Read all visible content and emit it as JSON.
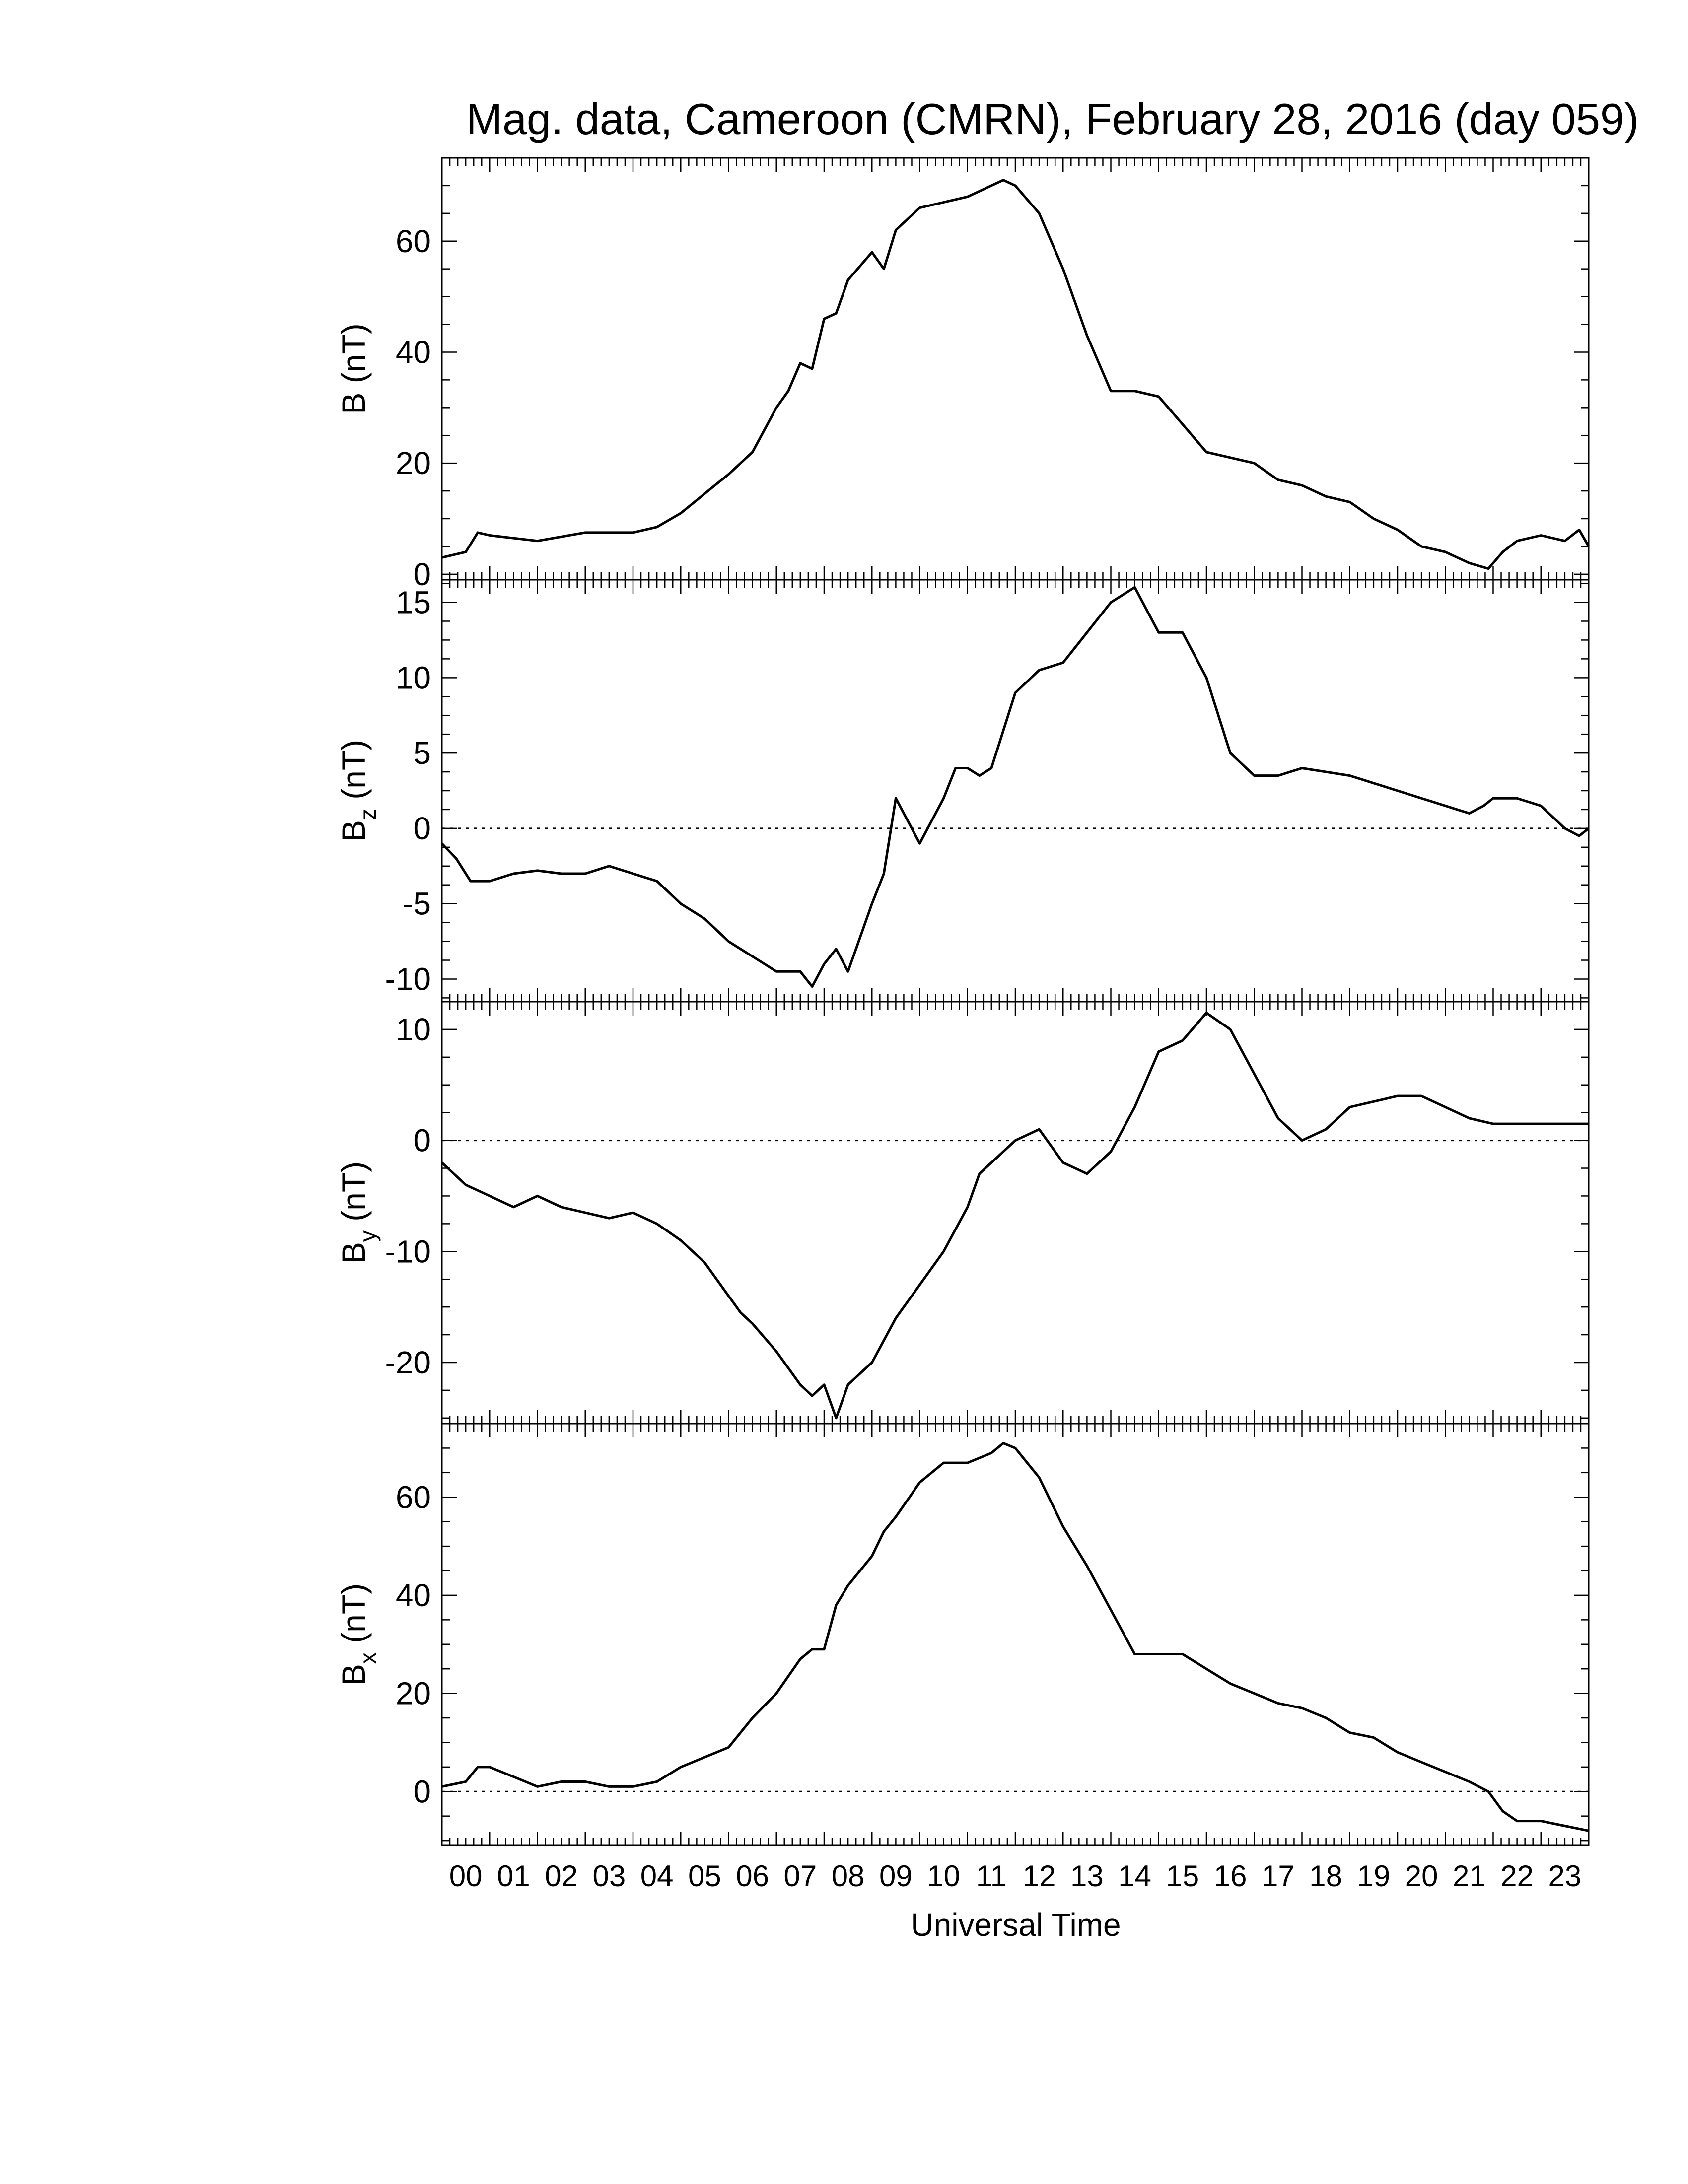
{
  "chart_data": {
    "type": "line",
    "title": "Mag. data, Cameroon (CMRN), February 28, 2016 (day 059)",
    "xlabel": "Universal Time",
    "xlim": [
      0,
      24
    ],
    "x_tick_labels": [
      "00",
      "01",
      "02",
      "03",
      "04",
      "05",
      "06",
      "07",
      "08",
      "09",
      "10",
      "11",
      "12",
      "13",
      "14",
      "15",
      "16",
      "17",
      "18",
      "19",
      "20",
      "21",
      "22",
      "23"
    ],
    "panels": [
      {
        "name": "B",
        "ylabel": "B (nT)",
        "ylabel_parts": {
          "base": "B",
          "sub": "",
          "unit": " (nT)"
        },
        "ylim": [
          -1,
          75
        ],
        "yticks": [
          0,
          20,
          40,
          60
        ],
        "zero_line": false,
        "x": [
          0,
          0.5,
          0.75,
          1,
          2,
          3,
          4,
          4.5,
          5,
          5.5,
          6,
          6.5,
          7,
          7.25,
          7.5,
          7.75,
          8,
          8.25,
          8.5,
          9,
          9.25,
          9.5,
          10,
          10.5,
          11,
          11.5,
          11.75,
          12,
          12.5,
          13,
          13.5,
          14,
          14.5,
          15,
          15.5,
          16,
          17,
          17.5,
          18,
          18.5,
          19,
          19.5,
          20,
          20.5,
          21,
          21.5,
          21.9,
          22.2,
          22.5,
          23,
          23.5,
          23.8,
          24
        ],
        "values": [
          3,
          4,
          7.5,
          7,
          6,
          7.5,
          7.5,
          8.5,
          11,
          14.5,
          18,
          22,
          30,
          33,
          38,
          37,
          46,
          47,
          53,
          58,
          55,
          62,
          66,
          67,
          68,
          70,
          71,
          70,
          65,
          55,
          43,
          33,
          33,
          32,
          27,
          22,
          20,
          17,
          16,
          14,
          13,
          10,
          8,
          5,
          4,
          2,
          1,
          4,
          6,
          7,
          6,
          8,
          5
        ]
      },
      {
        "name": "Bz",
        "ylabel": "Bz (nT)",
        "ylabel_parts": {
          "base": "B",
          "sub": "z",
          "unit": " (nT)"
        },
        "ylim": [
          -11.5,
          16.5
        ],
        "yticks": [
          -10,
          -5,
          0,
          5,
          10,
          15
        ],
        "zero_line": true,
        "x": [
          0,
          0.3,
          0.6,
          1,
          1.5,
          2,
          2.5,
          3,
          3.5,
          4,
          4.5,
          5,
          5.5,
          6,
          6.5,
          7,
          7.25,
          7.5,
          7.75,
          8,
          8.25,
          8.5,
          9,
          9.25,
          9.5,
          9.75,
          10,
          10.5,
          10.75,
          11,
          11.25,
          11.5,
          12,
          12.5,
          13,
          13.5,
          14,
          14.5,
          15,
          15.5,
          16,
          16.5,
          17,
          17.5,
          18,
          19,
          20,
          21,
          21.5,
          21.8,
          22,
          22.5,
          23,
          23.5,
          23.8,
          24
        ],
        "values": [
          -1,
          -2,
          -3.5,
          -3.5,
          -3,
          -2.8,
          -3,
          -3,
          -2.5,
          -3,
          -3.5,
          -5,
          -6,
          -7.5,
          -8.5,
          -9.5,
          -9.5,
          -9.5,
          -10.5,
          -9,
          -8,
          -9.5,
          -5,
          -3,
          2,
          0.5,
          -1,
          2,
          4,
          4,
          3.5,
          4,
          9,
          10.5,
          11,
          13,
          15,
          16,
          13,
          13,
          10,
          5,
          3.5,
          3.5,
          4,
          3.5,
          2.5,
          1.5,
          1,
          1.5,
          2,
          2,
          1.5,
          0,
          -0.5,
          0
        ]
      },
      {
        "name": "By",
        "ylabel": "By (nT)",
        "ylabel_parts": {
          "base": "B",
          "sub": "y",
          "unit": " (nT)"
        },
        "ylim": [
          -25.5,
          12.5
        ],
        "yticks": [
          -20,
          -10,
          0,
          10
        ],
        "zero_line": true,
        "x": [
          0,
          0.5,
          1,
          1.5,
          2,
          2.5,
          3,
          3.5,
          4,
          4.5,
          5,
          5.5,
          6,
          6.25,
          6.5,
          7,
          7.5,
          7.75,
          8,
          8.25,
          8.5,
          9,
          9.5,
          10,
          10.5,
          11,
          11.25,
          11.5,
          11.75,
          12,
          12.5,
          13,
          13.5,
          14,
          14.5,
          15,
          15.5,
          16,
          16.5,
          17,
          17.5,
          18,
          18.5,
          19,
          19.5,
          20,
          20.5,
          21,
          21.5,
          22,
          22.5,
          23,
          23.5,
          24
        ],
        "values": [
          -2,
          -4,
          -5,
          -6,
          -5,
          -6,
          -6.5,
          -7,
          -6.5,
          -7.5,
          -9,
          -11,
          -14,
          -15.5,
          -16.5,
          -19,
          -22,
          -23,
          -22,
          -25,
          -22,
          -20,
          -16,
          -13,
          -10,
          -6,
          -3,
          -2,
          -1,
          0,
          1,
          -2,
          -3,
          -1,
          3,
          8,
          9,
          11.5,
          10,
          6,
          2,
          0,
          1,
          3,
          3.5,
          4,
          4,
          3,
          2,
          1.5,
          1.5,
          1.5,
          1.5,
          1.5
        ]
      },
      {
        "name": "Bx",
        "ylabel": "Bx (nT)",
        "ylabel_parts": {
          "base": "B",
          "sub": "x",
          "unit": " (nT)"
        },
        "ylim": [
          -11,
          75
        ],
        "yticks": [
          0,
          20,
          40,
          60
        ],
        "zero_line": true,
        "x": [
          0,
          0.5,
          0.75,
          1,
          1.5,
          2,
          2.5,
          3,
          3.5,
          4,
          4.5,
          5,
          5.5,
          6,
          6.5,
          7,
          7.5,
          7.75,
          8,
          8.25,
          8.5,
          9,
          9.25,
          9.5,
          10,
          10.5,
          11,
          11.5,
          11.75,
          12,
          12.5,
          13,
          13.5,
          14,
          14.5,
          15,
          15.5,
          16,
          16.5,
          17,
          17.5,
          18,
          18.5,
          19,
          19.5,
          20,
          20.5,
          21,
          21.5,
          21.9,
          22.2,
          22.5,
          23,
          23.5,
          24
        ],
        "values": [
          1,
          2,
          5,
          5,
          3,
          1,
          2,
          2,
          1,
          1,
          2,
          5,
          7,
          9,
          15,
          20,
          27,
          29,
          29,
          38,
          42,
          48,
          53,
          56,
          63,
          67,
          67,
          69,
          71,
          70,
          64,
          54,
          46,
          37,
          28,
          28,
          28,
          25,
          22,
          20,
          18,
          17,
          15,
          12,
          11,
          8,
          6,
          4,
          2,
          0,
          -4,
          -6,
          -6,
          -7,
          -8
        ]
      }
    ]
  }
}
